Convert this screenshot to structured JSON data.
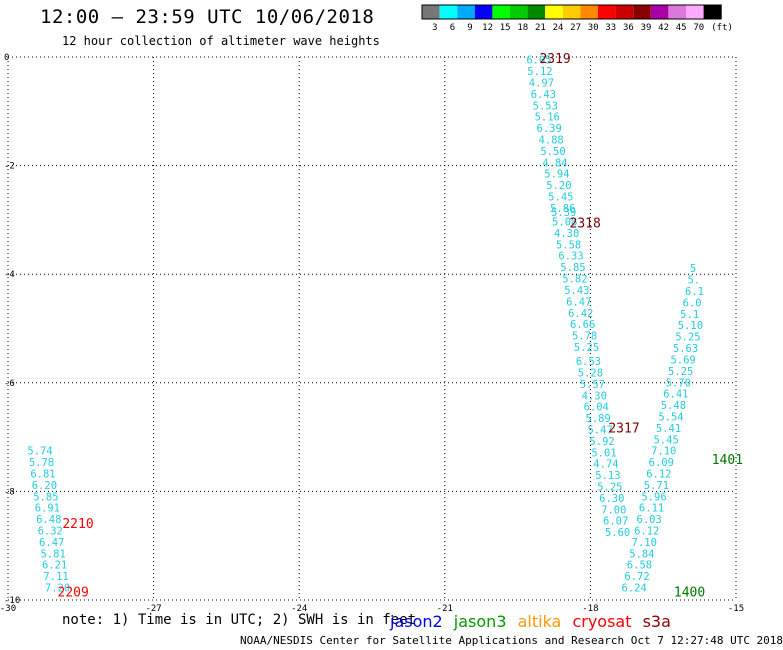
{
  "header": {
    "title": "12:00 — 23:59 UTC 10/06/2018",
    "subtitle": "12 hour collection of altimeter wave heights"
  },
  "legend": {
    "unit": "(ft)",
    "bins": [
      {
        "label": "3",
        "color": "#777777"
      },
      {
        "label": "6",
        "color": "#00ffff"
      },
      {
        "label": "9",
        "color": "#00aaff"
      },
      {
        "label": "12",
        "color": "#0000ff"
      },
      {
        "label": "15",
        "color": "#00ff00"
      },
      {
        "label": "18",
        "color": "#00cc00"
      },
      {
        "label": "21",
        "color": "#008800"
      },
      {
        "label": "24",
        "color": "#ffff00"
      },
      {
        "label": "27",
        "color": "#ffcc00"
      },
      {
        "label": "30",
        "color": "#ff8800"
      },
      {
        "label": "33",
        "color": "#ff0000"
      },
      {
        "label": "36",
        "color": "#cc0000"
      },
      {
        "label": "39",
        "color": "#880000"
      },
      {
        "label": "42",
        "color": "#aa00aa"
      },
      {
        "label": "45",
        "color": "#dd77dd"
      },
      {
        "label": "70",
        "color": "#ffaaff"
      },
      {
        "label": "",
        "color": "#000000"
      }
    ]
  },
  "map": {
    "lon_min": -30,
    "lon_max": -15,
    "lat_min": -10,
    "lat_max": 0,
    "x_ticks": [
      {
        "value": -30,
        "label": "-30"
      },
      {
        "value": -27,
        "label": "-27"
      },
      {
        "value": -24,
        "label": "-24"
      },
      {
        "value": -21,
        "label": "-21"
      },
      {
        "value": -18,
        "label": "-18"
      },
      {
        "value": -15,
        "label": "-15"
      }
    ],
    "y_ticks": [
      {
        "value": 0,
        "label": "0"
      },
      {
        "value": -2,
        "label": "-2"
      },
      {
        "value": -4,
        "label": "-4"
      },
      {
        "value": -6,
        "label": "-6"
      },
      {
        "value": -8,
        "label": "-8"
      },
      {
        "value": -10,
        "label": "-10"
      }
    ],
    "value_color": "#22ccdd",
    "tracks": [
      {
        "id": "track-a",
        "points": [
          {
            "lon": -29.6,
            "lat": -7.25,
            "v": "5.74"
          },
          {
            "lon": -29.57,
            "lat": -7.46,
            "v": "5.78"
          },
          {
            "lon": -29.54,
            "lat": -7.67,
            "v": "6.81"
          },
          {
            "lon": -29.51,
            "lat": -7.88,
            "v": "6.20"
          },
          {
            "lon": -29.48,
            "lat": -8.09,
            "v": "5.85"
          },
          {
            "lon": -29.45,
            "lat": -8.3,
            "v": "6.91"
          },
          {
            "lon": -29.42,
            "lat": -8.51,
            "v": "6.48"
          },
          {
            "lon": -29.39,
            "lat": -8.72,
            "v": "6.32"
          },
          {
            "lon": -29.36,
            "lat": -8.93,
            "v": "6.47"
          },
          {
            "lon": -29.33,
            "lat": -9.14,
            "v": "5.81"
          },
          {
            "lon": -29.3,
            "lat": -9.35,
            "v": "6.21"
          },
          {
            "lon": -29.27,
            "lat": -9.56,
            "v": "7.11"
          },
          {
            "lon": -29.24,
            "lat": -9.77,
            "v": "7.20"
          }
        ]
      },
      {
        "id": "track-b",
        "points": [
          {
            "lon": -19.32,
            "lat": -0.05,
            "v": "6.05"
          },
          {
            "lon": -19.3,
            "lat": -0.26,
            "v": "5.12"
          },
          {
            "lon": -19.27,
            "lat": -0.47,
            "v": "4.97"
          },
          {
            "lon": -19.23,
            "lat": -0.68,
            "v": "6.43"
          },
          {
            "lon": -19.19,
            "lat": -0.89,
            "v": "5.53"
          },
          {
            "lon": -19.15,
            "lat": -1.1,
            "v": "5.16"
          },
          {
            "lon": -19.11,
            "lat": -1.31,
            "v": "6.39"
          },
          {
            "lon": -19.07,
            "lat": -1.52,
            "v": "4.88"
          },
          {
            "lon": -19.03,
            "lat": -1.73,
            "v": "5.50"
          },
          {
            "lon": -18.99,
            "lat": -1.94,
            "v": "4.84"
          },
          {
            "lon": -18.95,
            "lat": -2.15,
            "v": "5.94"
          },
          {
            "lon": -18.91,
            "lat": -2.36,
            "v": "5.20"
          },
          {
            "lon": -18.87,
            "lat": -2.57,
            "v": "5.45"
          },
          {
            "lon": -18.83,
            "lat": -2.78,
            "v": "5.86"
          },
          {
            "lon": -18.81,
            "lat": -2.85,
            "v": "5.39"
          },
          {
            "lon": -18.79,
            "lat": -3.03,
            "v": "5.08"
          },
          {
            "lon": -18.75,
            "lat": -3.24,
            "v": "4.30"
          },
          {
            "lon": -18.71,
            "lat": -3.45,
            "v": "5.58"
          },
          {
            "lon": -18.66,
            "lat": -3.66,
            "v": "6.33"
          },
          {
            "lon": -18.62,
            "lat": -3.87,
            "v": "5.85"
          },
          {
            "lon": -18.58,
            "lat": -4.08,
            "v": "5.82"
          },
          {
            "lon": -18.54,
            "lat": -4.29,
            "v": "5.43"
          },
          {
            "lon": -18.5,
            "lat": -4.5,
            "v": "6.47"
          },
          {
            "lon": -18.46,
            "lat": -4.71,
            "v": "6.42"
          },
          {
            "lon": -18.42,
            "lat": -4.92,
            "v": "6.66"
          },
          {
            "lon": -18.38,
            "lat": -5.13,
            "v": "5.78"
          },
          {
            "lon": -18.34,
            "lat": -5.34,
            "v": "5.25"
          },
          {
            "lon": -18.3,
            "lat": -5.6,
            "v": "6.53"
          },
          {
            "lon": -18.26,
            "lat": -5.81,
            "v": "5.28"
          },
          {
            "lon": -18.22,
            "lat": -6.02,
            "v": "5.57"
          },
          {
            "lon": -18.18,
            "lat": -6.23,
            "v": "4.30"
          },
          {
            "lon": -18.14,
            "lat": -6.44,
            "v": "6.04"
          },
          {
            "lon": -18.1,
            "lat": -6.65,
            "v": "5.89"
          },
          {
            "lon": -18.06,
            "lat": -6.86,
            "v": "5.47"
          },
          {
            "lon": -18.02,
            "lat": -7.07,
            "v": "5.92"
          },
          {
            "lon": -17.98,
            "lat": -7.28,
            "v": "5.01"
          },
          {
            "lon": -17.94,
            "lat": -7.49,
            "v": "4.74"
          },
          {
            "lon": -17.9,
            "lat": -7.7,
            "v": "5.13"
          },
          {
            "lon": -17.86,
            "lat": -7.91,
            "v": "5.25"
          },
          {
            "lon": -17.82,
            "lat": -8.12,
            "v": "6.30"
          },
          {
            "lon": -17.78,
            "lat": -8.33,
            "v": "7.00"
          },
          {
            "lon": -17.74,
            "lat": -8.54,
            "v": "6.07"
          },
          {
            "lon": -17.7,
            "lat": -8.75,
            "v": "5.60"
          }
        ]
      },
      {
        "id": "track-c",
        "points": [
          {
            "lon": -17.36,
            "lat": -9.77,
            "v": "6.24"
          },
          {
            "lon": -17.3,
            "lat": -9.56,
            "v": "6.72"
          },
          {
            "lon": -17.25,
            "lat": -9.35,
            "v": "6.58"
          },
          {
            "lon": -17.2,
            "lat": -9.14,
            "v": "5.84"
          },
          {
            "lon": -17.15,
            "lat": -8.93,
            "v": "7.10"
          },
          {
            "lon": -17.1,
            "lat": -8.72,
            "v": "6.12"
          },
          {
            "lon": -17.05,
            "lat": -8.51,
            "v": "6.03"
          },
          {
            "lon": -17.0,
            "lat": -8.3,
            "v": "6.11"
          },
          {
            "lon": -16.95,
            "lat": -8.09,
            "v": "5.96"
          },
          {
            "lon": -16.9,
            "lat": -7.88,
            "v": "5.71"
          },
          {
            "lon": -16.85,
            "lat": -7.67,
            "v": "6.12"
          },
          {
            "lon": -16.8,
            "lat": -7.46,
            "v": "6.09"
          },
          {
            "lon": -16.75,
            "lat": -7.25,
            "v": "7.10"
          },
          {
            "lon": -16.7,
            "lat": -7.04,
            "v": "5.45"
          },
          {
            "lon": -16.65,
            "lat": -6.83,
            "v": "5.41"
          },
          {
            "lon": -16.6,
            "lat": -6.62,
            "v": "5.54"
          },
          {
            "lon": -16.55,
            "lat": -6.41,
            "v": "5.48"
          },
          {
            "lon": -16.5,
            "lat": -6.2,
            "v": "6.41"
          },
          {
            "lon": -16.45,
            "lat": -5.99,
            "v": "5.70"
          },
          {
            "lon": -16.4,
            "lat": -5.78,
            "v": "5.25"
          },
          {
            "lon": -16.35,
            "lat": -5.57,
            "v": "5.69"
          },
          {
            "lon": -16.3,
            "lat": -5.36,
            "v": "5.63"
          },
          {
            "lon": -16.25,
            "lat": -5.15,
            "v": "5.25"
          },
          {
            "lon": -16.2,
            "lat": -4.94,
            "v": "5.10"
          },
          {
            "lon": -16.15,
            "lat": -4.73,
            "v": "5.1"
          },
          {
            "lon": -16.1,
            "lat": -4.52,
            "v": "6.0"
          },
          {
            "lon": -16.05,
            "lat": -4.31,
            "v": "6.1"
          },
          {
            "lon": -16.0,
            "lat": -4.1,
            "v": "5."
          },
          {
            "lon": -15.95,
            "lat": -3.89,
            "v": "5"
          }
        ]
      }
    ],
    "time_labels": [
      {
        "lon": -19.05,
        "lat": -0.02,
        "text": "2319",
        "color": "#7a0000"
      },
      {
        "lon": -18.43,
        "lat": -3.05,
        "text": "2318",
        "color": "#7a0000"
      },
      {
        "lon": -17.63,
        "lat": -6.82,
        "text": "2317",
        "color": "#7a0000"
      },
      {
        "lon": -28.88,
        "lat": -8.58,
        "text": "2210",
        "color": "#ff0000"
      },
      {
        "lon": -28.98,
        "lat": -9.84,
        "text": "2209",
        "color": "#ff0000"
      },
      {
        "lon": -16.28,
        "lat": -9.84,
        "text": "1400",
        "color": "#007700"
      },
      {
        "lon": -15.5,
        "lat": -7.4,
        "text": "1401",
        "color": "#007700"
      }
    ]
  },
  "footer_notes": {
    "note": "note:  1) Time is in UTC;  2) SWH is in feet",
    "satellites": [
      {
        "name": "jason2",
        "color": "#0000ee"
      },
      {
        "name": "jason3",
        "color": "#009900"
      },
      {
        "name": "altika",
        "color": "#ff9900"
      },
      {
        "name": "cryosat",
        "color": "#ff0000"
      },
      {
        "name": "s3a",
        "color": "#8b0000"
      }
    ],
    "credit": "NOAA/NESDIS Center for Satellite Applications and Research    Oct  7 12:27:48 UTC 2018"
  }
}
